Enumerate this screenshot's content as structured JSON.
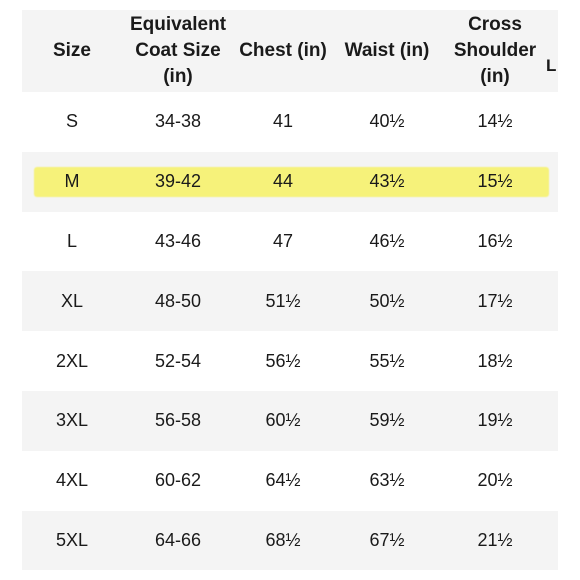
{
  "table": {
    "headers": [
      "Size",
      "Equivalent Coat Size (in)",
      "Chest (in)",
      "Waist (in)",
      "Cross Shoulder (in)"
    ],
    "header_lines": [
      [
        "Size"
      ],
      [
        "Equivalent",
        "Coat Size",
        "(in)"
      ],
      [
        "Chest (in)"
      ],
      [
        "Waist (in)"
      ],
      [
        "Cross",
        "Shoulder",
        "(in)"
      ]
    ],
    "cut_off_header": "L",
    "highlighted_row": "M",
    "highlight_color": "#f6f27a",
    "rows": [
      [
        "S",
        "34-38",
        "41",
        "40½",
        "14½"
      ],
      [
        "M",
        "39-42",
        "44",
        "43½",
        "15½"
      ],
      [
        "L",
        "43-46",
        "47",
        "46½",
        "16½"
      ],
      [
        "XL",
        "48-50",
        "51½",
        "50½",
        "17½"
      ],
      [
        "2XL",
        "52-54",
        "56½",
        "55½",
        "18½"
      ],
      [
        "3XL",
        "56-58",
        "60½",
        "59½",
        "19½"
      ],
      [
        "4XL",
        "60-62",
        "64½",
        "63½",
        "20½"
      ],
      [
        "5XL",
        "64-66",
        "68½",
        "67½",
        "21½"
      ]
    ]
  }
}
